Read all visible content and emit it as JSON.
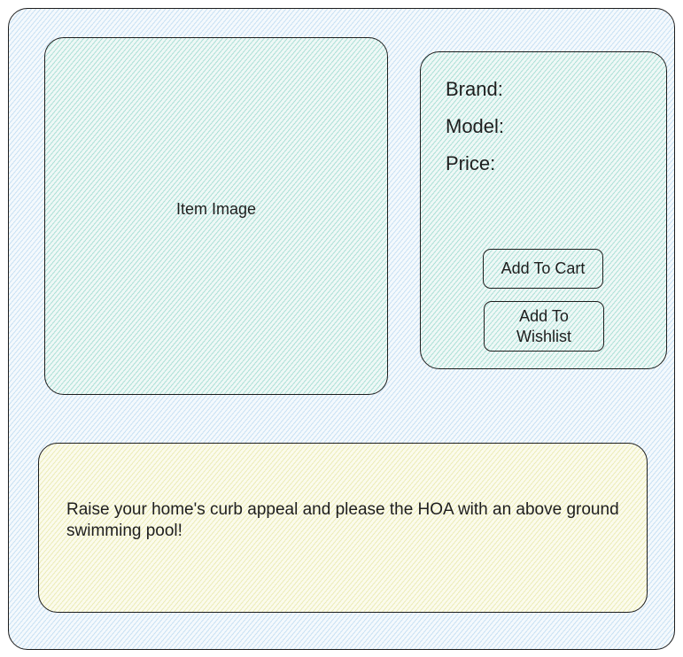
{
  "product": {
    "image_label": "Item Image",
    "brand_label": "Brand:",
    "model_label": "Model:",
    "price_label": "Price:",
    "add_to_cart_label": "Add To Cart",
    "add_to_wishlist_label": "Add To Wishlist",
    "description": "Raise your home's curb appeal and please the HOA with an above ground swimming pool!"
  },
  "colors": {
    "outline": "#1e1e1e",
    "outer_fill": "#a5cdeb",
    "panel_fill": "#78cdbe",
    "description_fill": "#e1e196"
  }
}
